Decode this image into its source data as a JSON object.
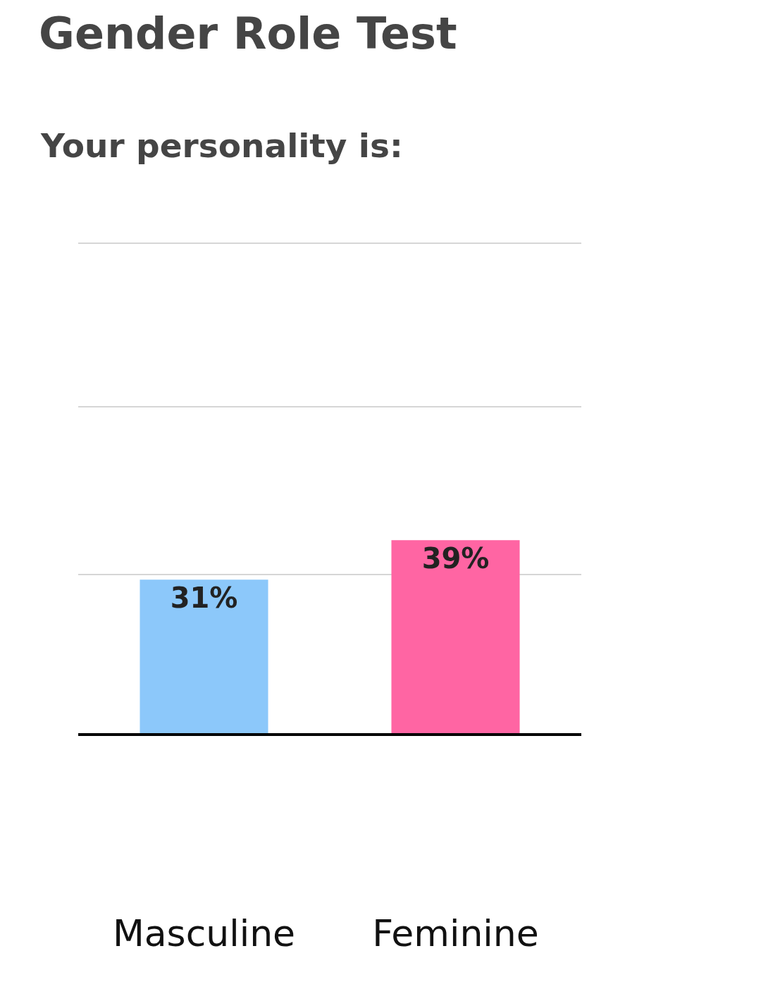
{
  "chart_data": {
    "type": "bar",
    "title": "Gender Role Test",
    "subtitle": "Your personality is:",
    "categories": [
      "Masculine",
      "Feminine"
    ],
    "values": [
      31,
      39
    ],
    "colors": [
      "#8cc8fa",
      "#ff65a3"
    ],
    "value_labels": [
      "31%",
      "39%"
    ],
    "ylim": [
      0,
      99
    ],
    "yticks": [
      {
        "value": 32,
        "label": null
      },
      {
        "value": 66,
        "label": null
      },
      {
        "value": 99,
        "label": null
      }
    ],
    "tick_labels": "x",
    "grid": "y",
    "legend": false
  }
}
